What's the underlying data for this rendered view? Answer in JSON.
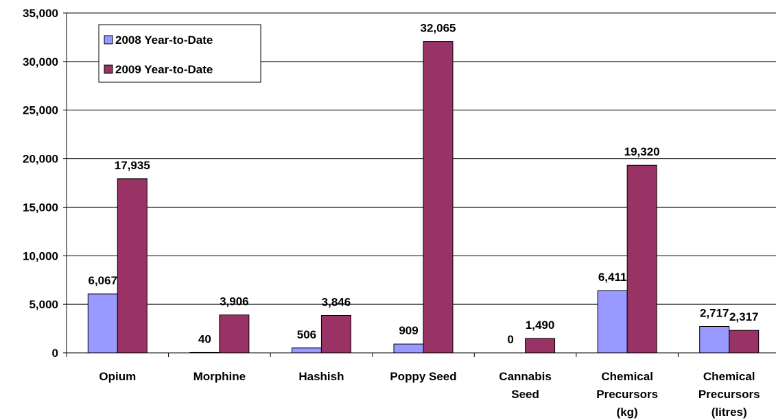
{
  "chart_data": {
    "type": "bar",
    "categories": [
      [
        "Opium"
      ],
      [
        "Morphine"
      ],
      [
        "Hashish"
      ],
      [
        "Poppy Seed"
      ],
      [
        "Cannabis",
        "Seed"
      ],
      [
        "Chemical",
        "Precursors",
        "(kg)"
      ],
      [
        "Chemical",
        "Precursors",
        "(litres)"
      ]
    ],
    "series": [
      {
        "name": "2008 Year-to-Date",
        "color": "#9999ff",
        "values": [
          6067,
          40,
          506,
          909,
          0,
          6411,
          2717
        ],
        "labels": [
          "6,067",
          "40",
          "506",
          "909",
          "0",
          "6,411",
          "2,717"
        ]
      },
      {
        "name": "2009 Year-to-Date",
        "color": "#993366",
        "values": [
          17935,
          3906,
          3846,
          32065,
          1490,
          19320,
          2317
        ],
        "labels": [
          "17,935",
          "3,906",
          "3,846",
          "32,065",
          "1,490",
          "19,320",
          "2,317"
        ]
      }
    ],
    "ylim": [
      0,
      35000
    ],
    "yticks": [
      0,
      5000,
      10000,
      15000,
      20000,
      25000,
      30000,
      35000
    ],
    "ytick_labels": [
      "0",
      "5,000",
      "10,000",
      "15,000",
      "20,000",
      "25,000",
      "30,000",
      "35,000"
    ],
    "grid": true,
    "legend_position": "top-left",
    "title": "",
    "xlabel": "",
    "ylabel": ""
  }
}
